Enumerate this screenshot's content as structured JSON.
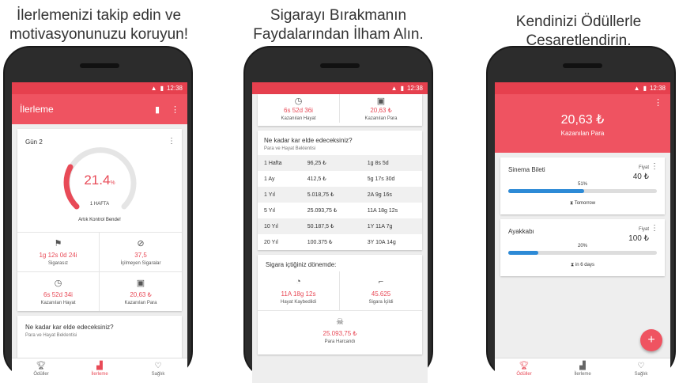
{
  "captions": {
    "left": [
      "İlerlemenizi takip edin ve",
      "motivasyonunuzu koruyun!"
    ],
    "middle": [
      "Sigarayı Bırakmanın",
      "Faydalarından İlham Alın."
    ],
    "right": [
      "Kendinizi Ödüllerle Cesaretlendirin."
    ]
  },
  "status": {
    "time": "12:38"
  },
  "phone1": {
    "title": "İlerleme",
    "day": "Gün 2",
    "percent": "21.4",
    "percent_unit": "%",
    "period": "1 HAFTA",
    "progress_fraction": 0.214,
    "status_text": "Artık Kontrol Bende!",
    "stats": [
      {
        "value": "1g 12s 0d 24i",
        "label": "Sigarasız",
        "icon": "flag-icon"
      },
      {
        "value": "37,5",
        "label": "İçilmeyen Sigaralar",
        "icon": "no-smoking-icon"
      },
      {
        "value": "6s 52d 34i",
        "label": "Kazanılan Hayat",
        "icon": "clock-icon"
      },
      {
        "value": "20,63 ₺",
        "label": "Kazanılan Para",
        "icon": "money-icon"
      }
    ],
    "gain_title": "Ne kadar kar elde edeceksiniz?",
    "gain_subtitle": "Para ve Hayat Beklentisi"
  },
  "nav": {
    "rewards": "Ödüller",
    "progress": "İlerleme",
    "health": "Sağlık"
  },
  "phone2": {
    "top_stats": [
      {
        "value": "6s 52d 36i",
        "label": "Kazanılan Hayat"
      },
      {
        "value": "20,63 ₺",
        "label": "Kazanılan Para"
      }
    ],
    "gain_title": "Ne kadar kar elde edeceksiniz?",
    "gain_subtitle": "Para ve Hayat Beklentisi",
    "rows": [
      [
        "1 Hafta",
        "96,25 ₺",
        "1g 8s 5d"
      ],
      [
        "1 Ay",
        "412,5 ₺",
        "5g 17s 30d"
      ],
      [
        "1 Yıl",
        "5.018,75 ₺",
        "2A 9g 16s"
      ],
      [
        "5 Yıl",
        "25.093,75 ₺",
        "11A 18g 12s"
      ],
      [
        "10 Yıl",
        "50.187,5 ₺",
        "1Y 11A 7g"
      ],
      [
        "20 Yıl",
        "100.375 ₺",
        "3Y 10A 14g"
      ]
    ],
    "smoking_title": "Sigara içtiğiniz dönemde:",
    "lost": [
      {
        "value": "11A 18g 12s",
        "label": "Hayat Kaybedildi"
      },
      {
        "value": "45.625",
        "label": "Sigara İçildi"
      }
    ],
    "spent": {
      "value": "25.093,75 ₺",
      "label": "Para Harcandı"
    }
  },
  "phone3": {
    "total": "20,63 ₺",
    "total_label": "Kazanılan Para",
    "rewards": [
      {
        "name": "Sinema Bileti",
        "price_label": "Fiyat",
        "price": "40 ₺",
        "percent": "51%",
        "fraction": 0.51,
        "eta": "Tomorrow"
      },
      {
        "name": "Ayakkabı",
        "price_label": "Fiyat",
        "price": "100 ₺",
        "percent": "20%",
        "fraction": 0.2,
        "eta": "in 6 days"
      }
    ]
  }
}
